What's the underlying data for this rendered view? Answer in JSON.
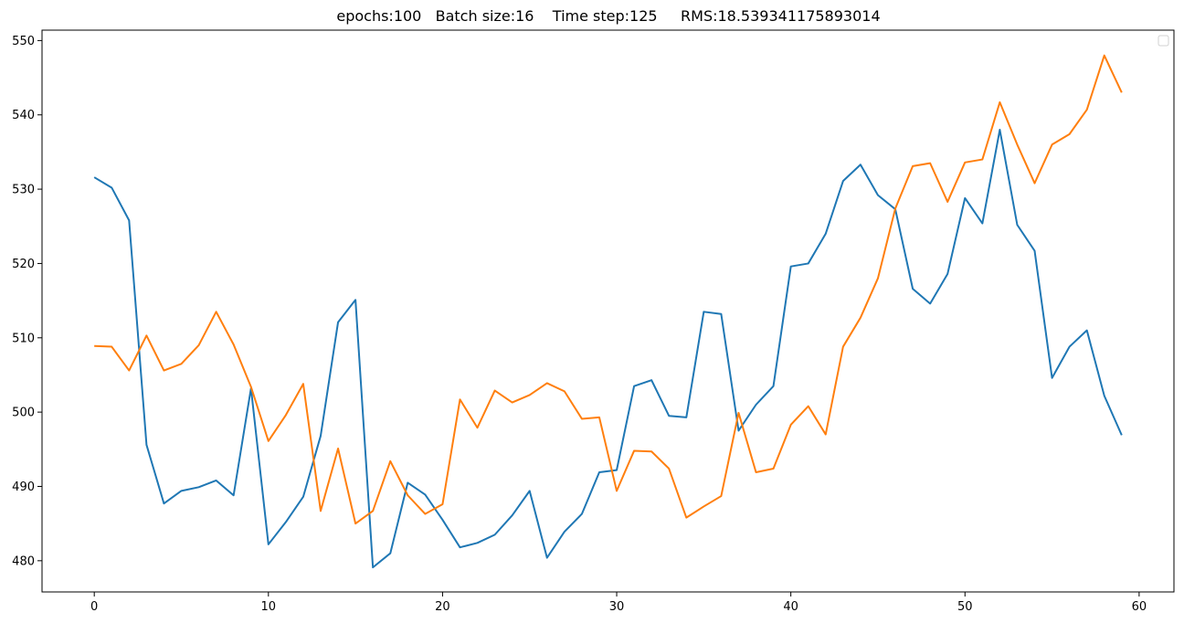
{
  "chart_data": {
    "type": "line",
    "title": "epochs:100   Batch size:16    Time step:125     RMS:18.539341175893014",
    "xlabel": "",
    "ylabel": "",
    "xlim": [
      -3,
      62
    ],
    "ylim": [
      475.8,
      551.4
    ],
    "xticks": [
      0,
      10,
      20,
      30,
      40,
      50,
      60
    ],
    "yticks": [
      480,
      490,
      500,
      510,
      520,
      530,
      540,
      550
    ],
    "grid": false,
    "legend": "top-right",
    "series": [
      {
        "color": "#1f77b4",
        "values": [
          531.6,
          530.2,
          525.8,
          495.6,
          487.7,
          489.4,
          489.9,
          490.8,
          488.8,
          503.2,
          482.2,
          485.2,
          488.6,
          496.8,
          512.1,
          515.1,
          479.1,
          481.0,
          490.5,
          488.9,
          485.5,
          481.8,
          482.4,
          483.5,
          486.1,
          489.4,
          480.4,
          483.9,
          486.3,
          491.9,
          492.2,
          503.5,
          504.3,
          499.5,
          499.3,
          513.5,
          513.2,
          497.5,
          501.0,
          503.5,
          519.6,
          520.0,
          524.0,
          531.1,
          533.3,
          529.2,
          527.3,
          516.6,
          514.6,
          518.6,
          528.8,
          525.4,
          538.0,
          525.2,
          521.7,
          504.6,
          508.8,
          511.0,
          502.2,
          496.9
        ]
      },
      {
        "color": "#ff7f0e",
        "values": [
          508.9,
          508.8,
          505.6,
          510.3,
          505.6,
          506.5,
          509.0,
          513.5,
          509.1,
          503.4,
          496.1,
          499.6,
          503.8,
          486.7,
          495.1,
          485.0,
          486.7,
          493.4,
          488.8,
          486.3,
          487.6,
          501.7,
          497.9,
          502.9,
          501.3,
          502.3,
          503.9,
          502.8,
          499.1,
          499.3,
          489.4,
          494.8,
          494.7,
          492.4,
          485.8,
          487.3,
          488.7,
          499.9,
          491.9,
          492.4,
          498.3,
          500.8,
          497.0,
          508.8,
          512.7,
          518.0,
          527.4,
          533.1,
          533.5,
          528.3,
          533.6,
          534.0,
          541.7,
          536.0,
          530.8,
          536.0,
          537.4,
          540.7,
          548.0,
          543.0
        ]
      }
    ]
  }
}
